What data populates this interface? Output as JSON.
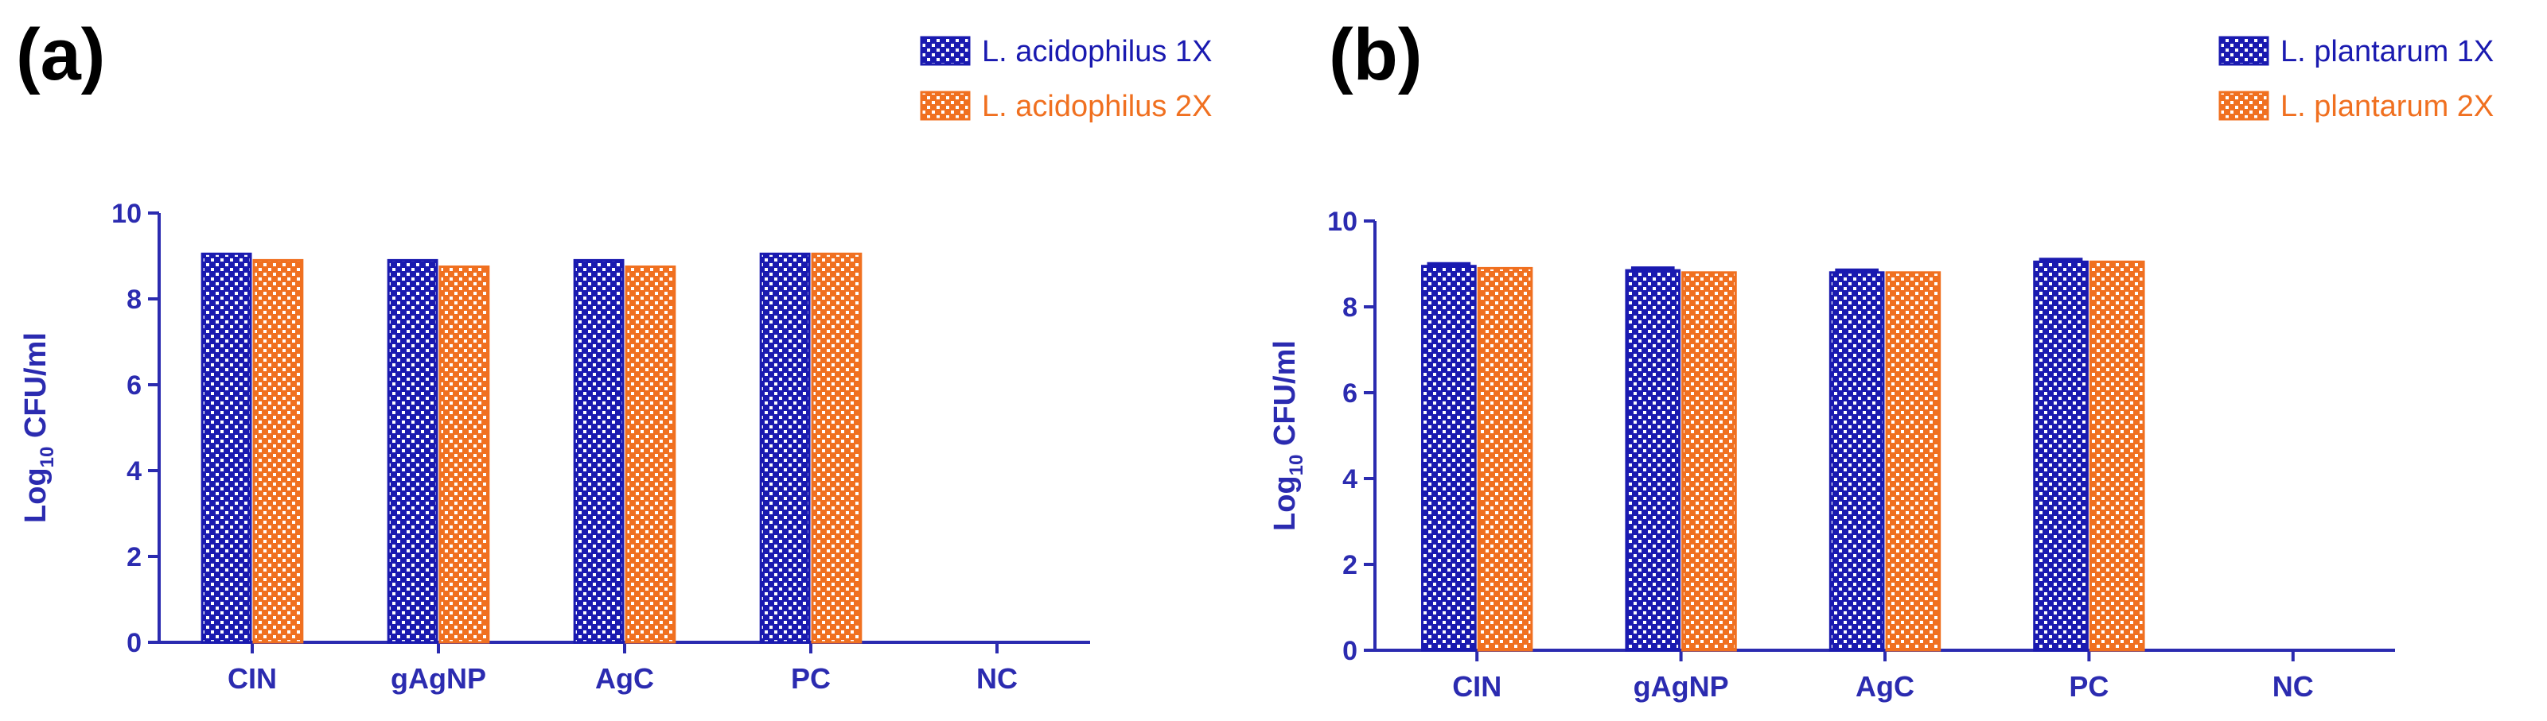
{
  "chart_data": [
    {
      "type": "bar",
      "panel_label": "(a)",
      "categories": [
        "CIN",
        "gAgNP",
        "AgC",
        "PC",
        "NC"
      ],
      "series": [
        {
          "name": "L. acidophilus 1X",
          "values": [
            9.05,
            8.9,
            8.9,
            9.05,
            0
          ],
          "color": "#1a1ab0"
        },
        {
          "name": "L. acidophilus 2X",
          "values": [
            8.9,
            8.75,
            8.75,
            9.05,
            0
          ],
          "color": "#f07020"
        }
      ],
      "ylabel_base": "Log",
      "ylabel_sub": "10",
      "ylabel_rest": " CFU/ml",
      "ylim": [
        0,
        10
      ],
      "yticks": [
        "0",
        "2",
        "4",
        "6",
        "8",
        "10"
      ],
      "legend_position": "top-right"
    },
    {
      "type": "bar",
      "panel_label": "(b)",
      "categories": [
        "CIN",
        "gAgNP",
        "AgC",
        "PC",
        "NC"
      ],
      "series": [
        {
          "name": "L. plantarum 1X",
          "values": [
            8.95,
            8.85,
            8.8,
            9.05,
            0
          ],
          "color": "#1a1ab0"
        },
        {
          "name": "L. plantarum 2X",
          "values": [
            8.9,
            8.8,
            8.8,
            9.05,
            0
          ],
          "color": "#f07020"
        }
      ],
      "ylabel_base": "Log",
      "ylabel_sub": "10",
      "ylabel_rest": " CFU/ml",
      "ylim": [
        0,
        10
      ],
      "yticks": [
        "0",
        "2",
        "4",
        "6",
        "8",
        "10"
      ],
      "legend_position": "top-right"
    }
  ]
}
